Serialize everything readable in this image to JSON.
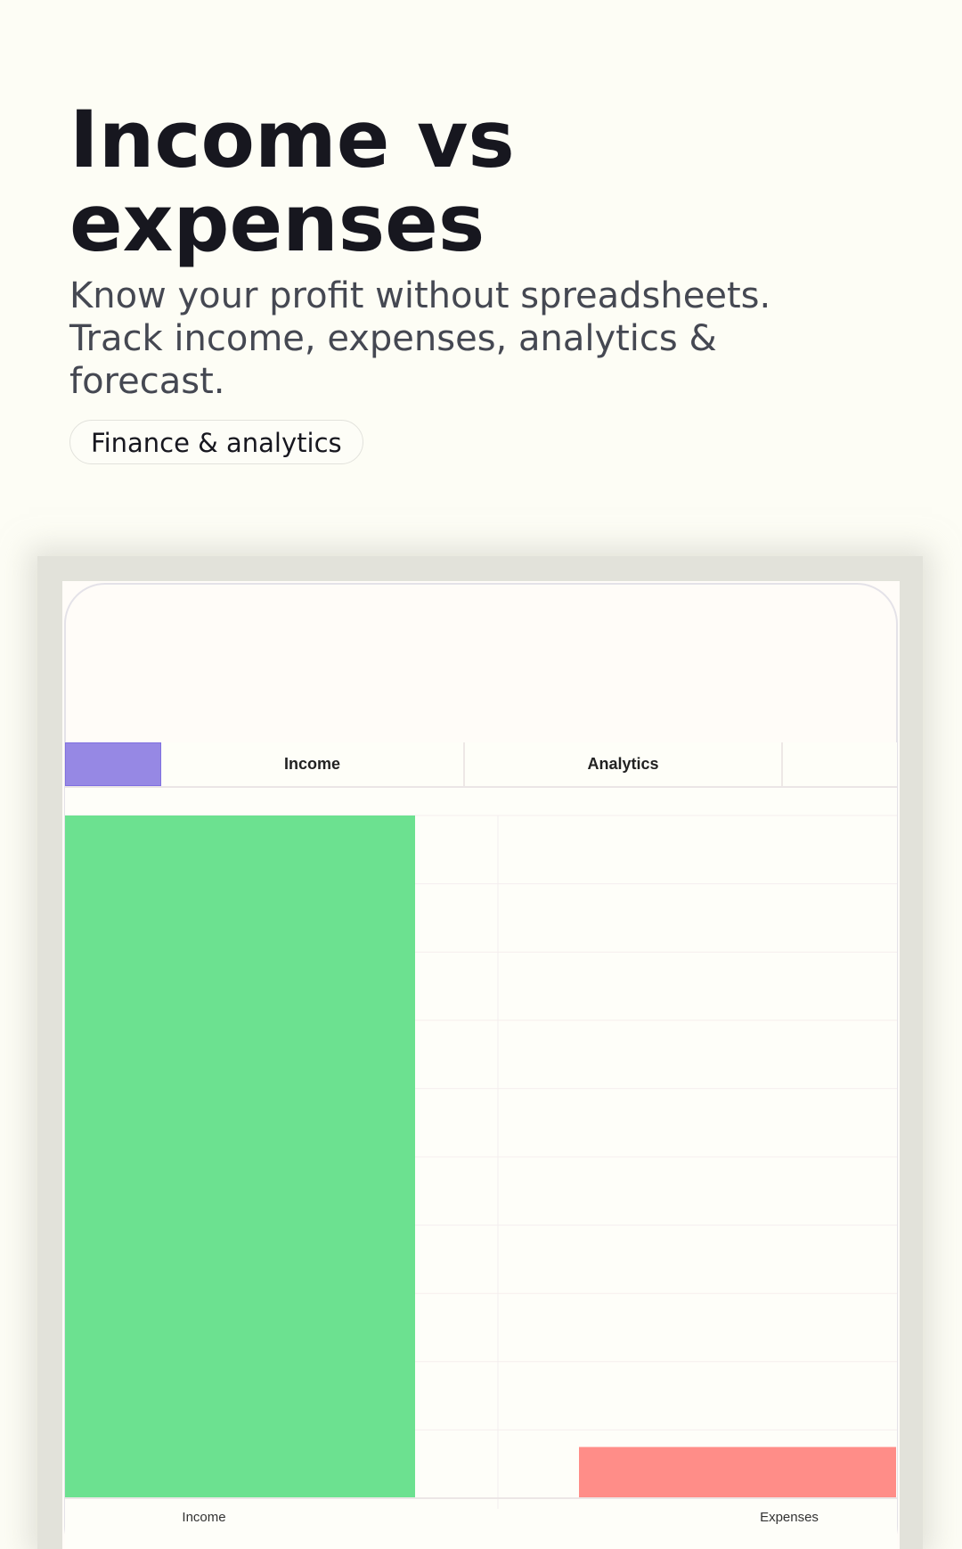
{
  "hero": {
    "title": "Income vs expenses",
    "subtitle": "Know your profit without spreadsheets. Track income, expenses, analytics & forecast.",
    "tag": "Finance & analytics"
  },
  "app": {
    "tabs": [
      {
        "label": ""
      },
      {
        "label": "Income"
      },
      {
        "label": "Analytics"
      },
      {
        "label": ""
      }
    ],
    "accent_color": "#9688e4"
  },
  "chart_data": {
    "type": "bar",
    "categories": [
      "Income",
      "Expenses"
    ],
    "values": [
      10,
      0.75
    ],
    "colors": [
      "#6ce190",
      "#ff8d88"
    ],
    "ylim": [
      0,
      10
    ],
    "grid": true,
    "title": "",
    "xlabel": "",
    "ylabel": ""
  }
}
